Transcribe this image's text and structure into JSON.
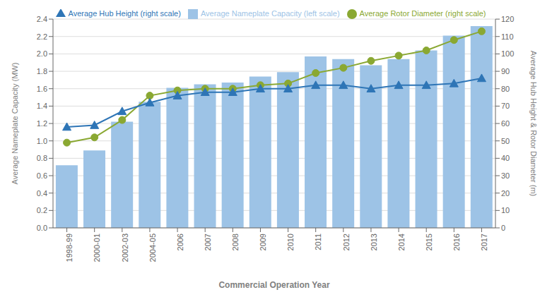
{
  "chart_data": {
    "type": "bar",
    "categories": [
      "1998-99",
      "2000-01",
      "2002-03",
      "2004-05",
      "2006",
      "2007",
      "2008",
      "2009",
      "2010",
      "2011",
      "2012",
      "2013",
      "2014",
      "2015",
      "2016",
      "2017"
    ],
    "xlabel": "Commercial Operation Year",
    "ylabel": "Average Nameplate Capacity (MW)",
    "y2label": "Average Hub Height & Rotor Diameter (m)",
    "series": [
      {
        "name": "Average Nameplate Capacity (left scale)",
        "type": "bar",
        "color": "#9DC3E6",
        "values": [
          0.72,
          0.89,
          1.22,
          1.45,
          1.61,
          1.65,
          1.67,
          1.74,
          1.79,
          1.97,
          1.94,
          1.87,
          1.94,
          2.04,
          2.21,
          2.32
        ]
      },
      {
        "name": "Average Rotor Diameter (right scale)",
        "type": "line",
        "axis": "y2",
        "color": "#8AA832",
        "marker": "circle",
        "values": [
          49,
          52,
          62,
          76,
          79,
          80,
          80,
          82,
          83,
          89,
          92,
          96,
          99,
          102,
          108,
          113
        ]
      },
      {
        "name": "Average Hub Height (right scale)",
        "type": "line",
        "axis": "y2",
        "color": "#2E75B6",
        "marker": "triangle",
        "values": [
          58,
          59,
          67,
          72,
          76,
          78,
          78,
          80,
          80,
          82,
          82,
          80,
          82,
          82,
          83,
          86
        ]
      }
    ],
    "ylim": [
      0.0,
      2.4
    ],
    "yticks": [
      {
        "value": 0.0,
        "label": "0.0"
      },
      0.2,
      0.4,
      0.6,
      0.8,
      {
        "value": 1.0,
        "label": "1.0"
      },
      1.2,
      1.4,
      1.6,
      1.8,
      {
        "value": 2.0,
        "label": "2.0"
      },
      2.2,
      2.4
    ],
    "y2lim": [
      0,
      120
    ],
    "y2ticks": [
      0,
      10,
      20,
      30,
      40,
      50,
      60,
      70,
      80,
      90,
      100,
      110,
      120
    ],
    "grid": true,
    "legend": "top"
  }
}
